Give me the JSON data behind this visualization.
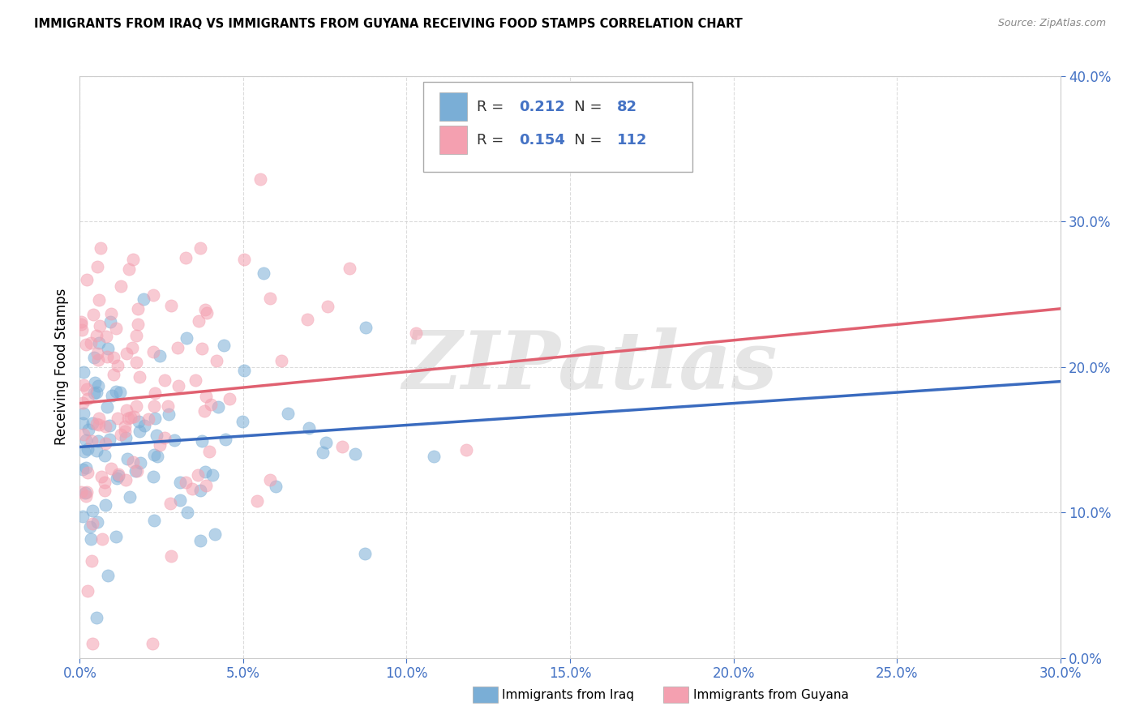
{
  "title": "IMMIGRANTS FROM IRAQ VS IMMIGRANTS FROM GUYANA RECEIVING FOOD STAMPS CORRELATION CHART",
  "source": "Source: ZipAtlas.com",
  "ylabel_label": "Receiving Food Stamps",
  "xlabel_label_iraq": "Immigrants from Iraq",
  "xlabel_label_guyana": "Immigrants from Guyana",
  "x_min": 0.0,
  "x_max": 30.0,
  "y_min": 0.0,
  "y_max": 40.0,
  "x_ticks": [
    0,
    5,
    10,
    15,
    20,
    25,
    30
  ],
  "y_ticks": [
    0,
    10,
    20,
    30,
    40
  ],
  "iraq_R": 0.212,
  "iraq_N": 82,
  "guyana_R": 0.154,
  "guyana_N": 112,
  "iraq_color": "#7aaed6",
  "guyana_color": "#f4a0b0",
  "iraq_line_color": "#3a6bbf",
  "guyana_line_color": "#e06070",
  "tick_color": "#4472c4",
  "grid_color": "#cccccc",
  "watermark": "ZIPatlas",
  "iraq_line_start_y": 14.5,
  "iraq_line_end_y": 19.0,
  "guyana_line_start_y": 17.5,
  "guyana_line_end_y": 24.0
}
